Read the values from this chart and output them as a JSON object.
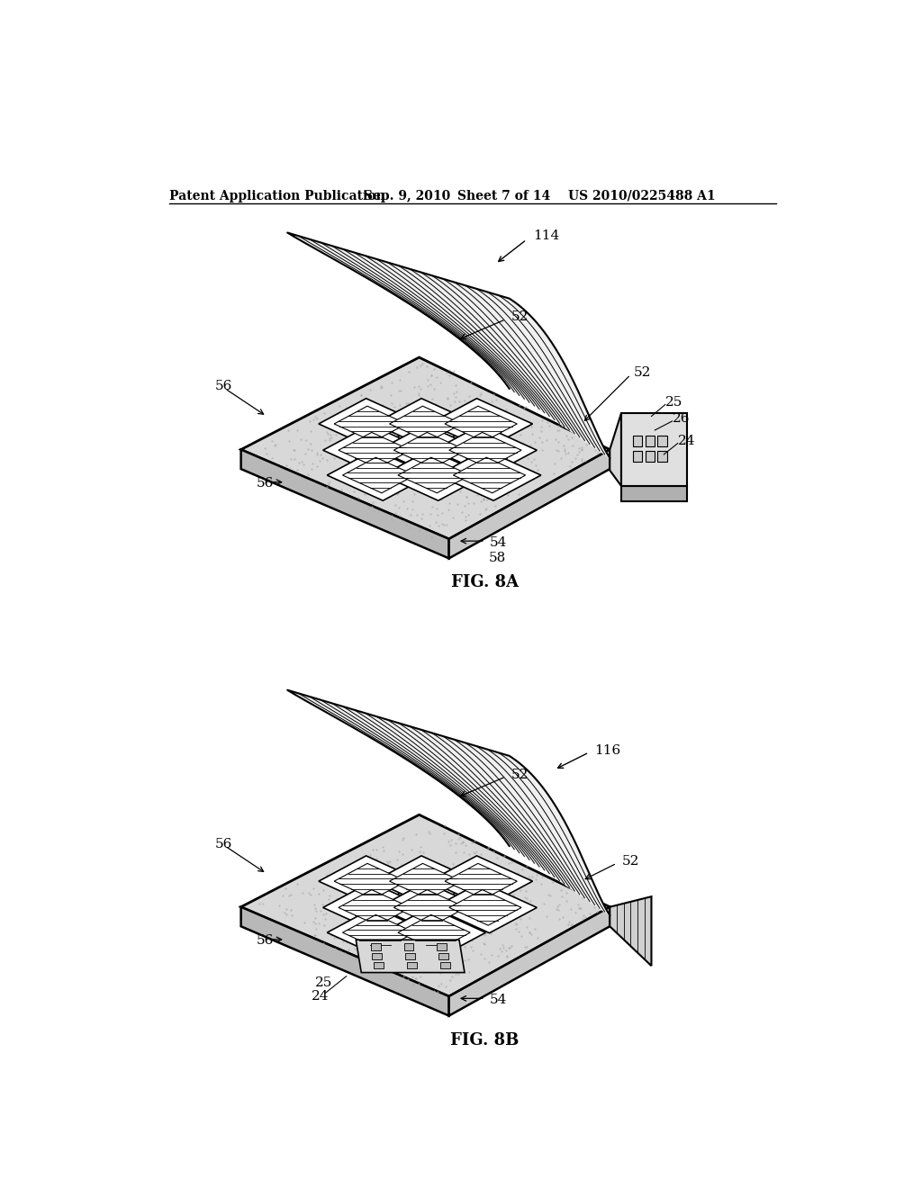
{
  "background_color": "#ffffff",
  "header_text": "Patent Application Publication",
  "header_date": "Sep. 9, 2010",
  "header_sheet": "Sheet 7 of 14",
  "header_patent": "US 2010/0225488 A1",
  "fig8a_label": "FIG. 8A",
  "fig8b_label": "FIG. 8B",
  "line_color": "#000000",
  "pad_fill": "#d8d8d8",
  "pad_edge": "#000000",
  "cover_fill": "#f0f0f0",
  "cell_fill": "#ffffff",
  "elec_fill": "#e0e0e0"
}
